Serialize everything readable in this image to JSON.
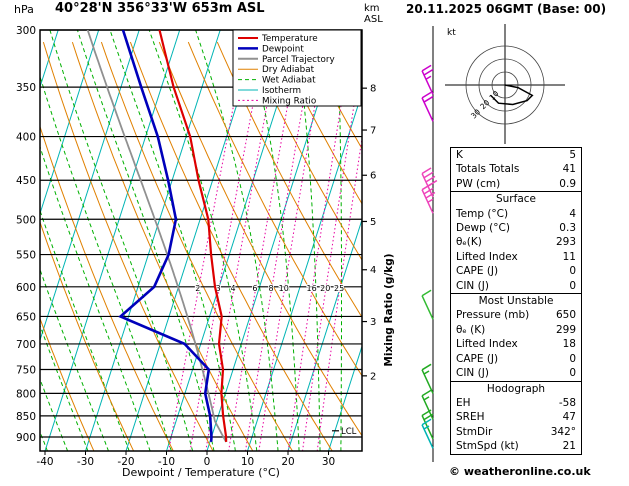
{
  "header": {
    "station": "40°28'N 356°33'W 653m ASL",
    "datetime": "20.11.2025 06GMT (Base: 00)",
    "pressure_unit": "hPa",
    "altitude_unit_line1": "km",
    "altitude_unit_line2": "ASL"
  },
  "legend": [
    {
      "label": "Temperature",
      "color": "#dd0000",
      "style": "solid",
      "width": 2
    },
    {
      "label": "Dewpoint",
      "color": "#0000bb",
      "style": "solid",
      "width": 2.5
    },
    {
      "label": "Parcel Trajectory",
      "color": "#909090",
      "style": "solid",
      "width": 2
    },
    {
      "label": "Dry Adiabat",
      "color": "#e08000",
      "style": "solid",
      "width": 1
    },
    {
      "label": "Wet Adiabat",
      "color": "#00b000",
      "style": "dashed",
      "width": 1
    },
    {
      "label": "Isotherm",
      "color": "#00b4b4",
      "style": "solid",
      "width": 1
    },
    {
      "label": "Mixing Ratio",
      "color": "#e600a0",
      "style": "dotted",
      "width": 1
    }
  ],
  "axes": {
    "pressure_ticks": [
      300,
      350,
      400,
      450,
      500,
      550,
      600,
      650,
      700,
      750,
      800,
      850,
      900
    ],
    "temp_ticks": [
      -40,
      -30,
      -20,
      -10,
      0,
      10,
      20,
      30
    ],
    "xlabel": "Dewpoint / Temperature (°C)",
    "km_ticks": [
      {
        "km": 8,
        "p": 351
      },
      {
        "km": 7,
        "p": 393
      },
      {
        "km": 6,
        "p": 444
      },
      {
        "km": 5,
        "p": 503
      },
      {
        "km": 4,
        "p": 573
      },
      {
        "km": 3,
        "p": 659
      },
      {
        "km": 2,
        "p": 763
      }
    ],
    "mixing_ratio_label": "Mixing Ratio (g/kg)",
    "mixing_ratio_values": [
      2,
      3,
      4,
      6,
      8,
      10,
      16,
      20,
      25
    ],
    "mixing_ratio_label_pressure": 610,
    "lcl_label": "LCL",
    "lcl_pressure": 885
  },
  "background": {
    "isotherm_color": "#00b4b4",
    "dry_adiabat_color": "#e08000",
    "wet_adiabat_color": "#00b000",
    "mixing_ratio_color": "#e600a0",
    "gridline_color": "#000000"
  },
  "chart_data": {
    "type": "line",
    "subtype": "skew-t log-p sounding",
    "title": "40°28'N 356°33'W 653m ASL",
    "xlabel": "Dewpoint / Temperature (°C)",
    "ylabel": "hPa",
    "pressure_range_hpa": [
      300,
      935
    ],
    "x_ticks_c": [
      -40,
      -30,
      -20,
      -10,
      0,
      10,
      20,
      30
    ],
    "series": [
      {
        "name": "Temperature",
        "color": "#dd0000",
        "points_p_t": [
          [
            912,
            4
          ],
          [
            900,
            3.6
          ],
          [
            850,
            1.2
          ],
          [
            800,
            -1
          ],
          [
            750,
            -2.5
          ],
          [
            700,
            -5.5
          ],
          [
            650,
            -7
          ],
          [
            600,
            -11
          ],
          [
            550,
            -14.5
          ],
          [
            500,
            -18
          ],
          [
            450,
            -23.5
          ],
          [
            400,
            -29
          ],
          [
            350,
            -37
          ],
          [
            300,
            -45
          ]
        ]
      },
      {
        "name": "Dewpoint",
        "color": "#0000bb",
        "points_p_t": [
          [
            912,
            0.3
          ],
          [
            900,
            0
          ],
          [
            850,
            -2
          ],
          [
            800,
            -5
          ],
          [
            750,
            -6
          ],
          [
            700,
            -14
          ],
          [
            650,
            -32
          ],
          [
            600,
            -26
          ],
          [
            550,
            -25
          ],
          [
            500,
            -26
          ],
          [
            450,
            -31
          ],
          [
            400,
            -37
          ],
          [
            350,
            -45
          ],
          [
            300,
            -54
          ]
        ]
      }
    ],
    "parcel": {
      "surface_pressure_hpa": 912,
      "surface_temp_c": 4,
      "surface_dewpoint_c": 0.3,
      "color": "#909090"
    },
    "wind_barbs": [
      {
        "pressure_hpa": 357,
        "speed_kt": 25,
        "color": "#cc00cc"
      },
      {
        "pressure_hpa": 384,
        "speed_kt": 20,
        "color": "#cc00cc"
      },
      {
        "pressure_hpa": 471,
        "speed_kt": 40,
        "color": "#ee44bb"
      },
      {
        "pressure_hpa": 492,
        "speed_kt": 35,
        "color": "#ee44bb"
      },
      {
        "pressure_hpa": 655,
        "speed_kt": 10,
        "color": "#33bb33"
      },
      {
        "pressure_hpa": 800,
        "speed_kt": 15,
        "color": "#22aa22"
      },
      {
        "pressure_hpa": 858,
        "speed_kt": 15,
        "color": "#22aa22"
      },
      {
        "pressure_hpa": 905,
        "speed_kt": 20,
        "color": "#22aa22"
      },
      {
        "pressure_hpa": 928,
        "speed_kt": 15,
        "color": "#00b4b4"
      }
    ]
  },
  "hodograph": {
    "unit_label": "kt",
    "ring_radii_kt": [
      10,
      20,
      30
    ],
    "ring_labels": [
      "10",
      "20",
      "30"
    ],
    "trace_uv_kt": [
      [
        0,
        0
      ],
      [
        10,
        -2
      ],
      [
        21,
        -8
      ],
      [
        17,
        -12
      ],
      [
        6,
        -15
      ],
      [
        -5,
        -14
      ],
      [
        -11,
        -8
      ]
    ]
  },
  "table": {
    "sections": [
      {
        "title": "",
        "rows": [
          {
            "label": "K",
            "value": "5"
          },
          {
            "label": "Totals Totals",
            "value": "41"
          },
          {
            "label": "PW (cm)",
            "value": "0.9"
          }
        ]
      },
      {
        "title": "Surface",
        "rows": [
          {
            "label": "Temp (°C)",
            "value": "4"
          },
          {
            "label": "Dewp (°C)",
            "value": "0.3"
          },
          {
            "label": "θₑ(K)",
            "value": "293"
          },
          {
            "label": "Lifted Index",
            "value": "11"
          },
          {
            "label": "CAPE (J)",
            "value": "0"
          },
          {
            "label": "CIN (J)",
            "value": "0"
          }
        ]
      },
      {
        "title": "Most Unstable",
        "rows": [
          {
            "label": "Pressure (mb)",
            "value": "650"
          },
          {
            "label": "θₑ (K)",
            "value": "299"
          },
          {
            "label": "Lifted Index",
            "value": "18"
          },
          {
            "label": "CAPE (J)",
            "value": "0"
          },
          {
            "label": "CIN (J)",
            "value": "0"
          }
        ]
      },
      {
        "title": "Hodograph",
        "rows": [
          {
            "label": "EH",
            "value": "-58"
          },
          {
            "label": "SREH",
            "value": "47"
          },
          {
            "label": "StmDir",
            "value": "342°"
          },
          {
            "label": "StmSpd (kt)",
            "value": "21"
          }
        ]
      }
    ]
  },
  "footer": {
    "copyright": "© weatheronline.co.uk"
  }
}
